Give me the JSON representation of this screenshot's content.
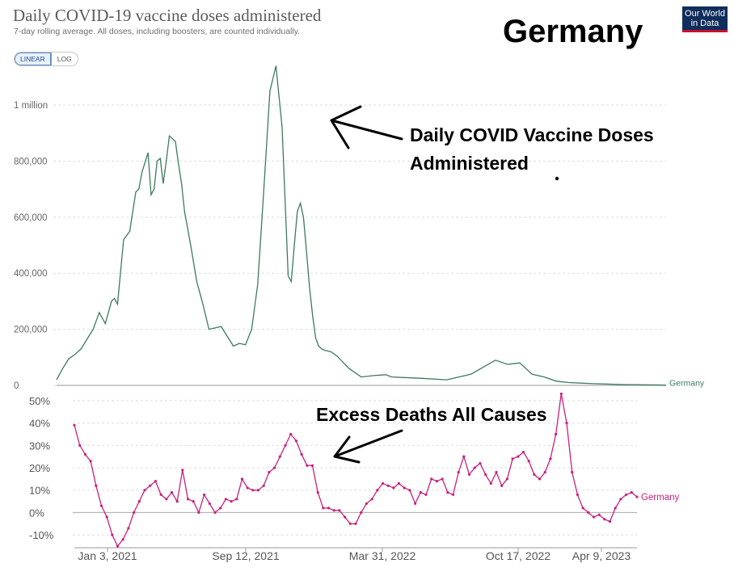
{
  "header": {
    "title": "Daily COVID-19 vaccine doses administered",
    "subtitle": "7-day rolling average. All doses, including boosters, are counted individually.",
    "logo_line1": "Our World",
    "logo_line2": "in Data",
    "country_title": "Germany",
    "toggle_linear": "LINEAR",
    "toggle_log": "LOG"
  },
  "annotations": {
    "vaccine": "Daily COVID Vaccine Doses",
    "vaccine_line2": "Administered",
    "deaths": "Excess Deaths All Causes"
  },
  "colors": {
    "vaccine_line": "#3d7a5c",
    "deaths_line": "#c8217e",
    "grid": "#dddddd"
  },
  "chart_data": [
    {
      "type": "line",
      "title": "Daily COVID-19 vaccine doses administered",
      "ylim": [
        0,
        1150000
      ],
      "y_ticks": [
        0,
        200000,
        400000,
        600000,
        800000,
        1000000
      ],
      "y_tick_labels": [
        "0",
        "200,000",
        "400,000",
        "600,000",
        "800,000",
        "1 million"
      ],
      "series": [
        {
          "name": "Germany",
          "x": [
            0,
            0.01,
            0.02,
            0.03,
            0.04,
            0.06,
            0.07,
            0.08,
            0.09,
            0.095,
            0.1,
            0.11,
            0.12,
            0.13,
            0.135,
            0.14,
            0.15,
            0.155,
            0.16,
            0.165,
            0.17,
            0.175,
            0.18,
            0.185,
            0.19,
            0.195,
            0.2,
            0.205,
            0.21,
            0.215,
            0.22,
            0.23,
            0.24,
            0.25,
            0.27,
            0.29,
            0.3,
            0.31,
            0.32,
            0.33,
            0.34,
            0.35,
            0.36,
            0.37,
            0.38,
            0.385,
            0.39,
            0.395,
            0.4,
            0.405,
            0.41,
            0.415,
            0.42,
            0.425,
            0.43,
            0.435,
            0.44,
            0.45,
            0.46,
            0.48,
            0.5,
            0.52,
            0.54,
            0.55,
            0.57,
            0.6,
            0.64,
            0.68,
            0.72,
            0.74,
            0.76,
            0.78,
            0.8,
            0.82,
            0.84,
            0.86,
            0.88,
            0.9,
            0.93,
            0.96,
            1.0
          ],
          "values": [
            20000,
            60000,
            95000,
            110000,
            130000,
            200000,
            260000,
            220000,
            300000,
            310000,
            290000,
            520000,
            550000,
            690000,
            700000,
            760000,
            830000,
            680000,
            700000,
            800000,
            810000,
            720000,
            800000,
            890000,
            880000,
            870000,
            790000,
            720000,
            620000,
            560000,
            500000,
            370000,
            290000,
            200000,
            210000,
            140000,
            150000,
            145000,
            200000,
            360000,
            700000,
            1050000,
            1140000,
            920000,
            390000,
            370000,
            500000,
            620000,
            650000,
            600000,
            480000,
            350000,
            250000,
            170000,
            140000,
            130000,
            125000,
            120000,
            105000,
            60000,
            30000,
            35000,
            38000,
            30000,
            28000,
            25000,
            20000,
            40000,
            90000,
            75000,
            80000,
            40000,
            30000,
            15000,
            10000,
            8000,
            6000,
            5000,
            3000,
            2000,
            1000
          ]
        }
      ]
    },
    {
      "type": "line",
      "title": "Excess Deaths All Causes",
      "ylim": [
        -15,
        55
      ],
      "y_ticks": [
        -10,
        0,
        10,
        20,
        30,
        40,
        50
      ],
      "y_tick_labels": [
        "-10%",
        "0%",
        "10%",
        "20%",
        "30%",
        "40%",
        "50%"
      ],
      "x_tick_labels": [
        "Jan 3, 2021",
        "Sep 12, 2021",
        "Mar 31, 2022",
        "Oct 17, 2022",
        "Apr 9, 2023"
      ],
      "series": [
        {
          "name": "Germany",
          "values": [
            39,
            30,
            26,
            23,
            12,
            3,
            -2,
            -10,
            -15,
            -12,
            -7,
            0,
            5,
            10,
            12,
            14,
            8,
            6,
            9,
            5,
            19,
            6,
            5,
            0,
            8,
            4,
            0,
            2,
            6,
            5,
            6,
            15,
            11,
            10,
            10,
            12,
            18,
            20,
            25,
            30,
            35,
            32,
            26,
            21,
            21,
            9,
            2,
            2,
            1,
            1,
            -2,
            -5,
            -5,
            0,
            4,
            6,
            10,
            13,
            12,
            11,
            13,
            11,
            10,
            4,
            9,
            8,
            15,
            14,
            15,
            9,
            8,
            18,
            25,
            17,
            20,
            22,
            17,
            13,
            18,
            12,
            15,
            24,
            25,
            27,
            23,
            17,
            15,
            18,
            24,
            35,
            53,
            40,
            18,
            8,
            2,
            0,
            -2,
            -1,
            -3,
            -4,
            2,
            6,
            8,
            9,
            7
          ]
        }
      ]
    }
  ]
}
